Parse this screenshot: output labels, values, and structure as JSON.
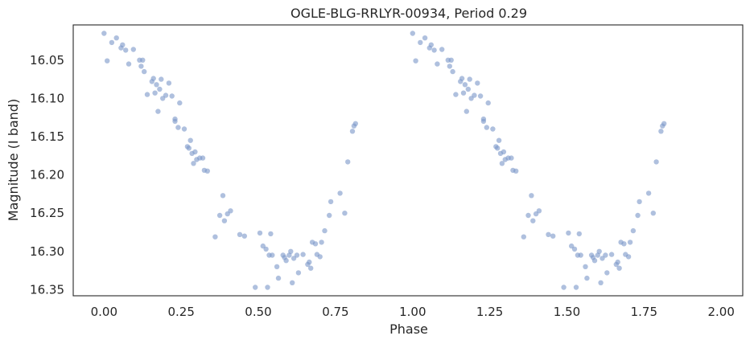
{
  "chart_data": {
    "type": "scatter",
    "title": "OGLE-BLG-RRLYR-00934, Period 0.29",
    "xlabel": "Phase",
    "ylabel": "Magnitude (I band)",
    "xlim": [
      -0.1,
      2.07
    ],
    "ylim": [
      16.358,
      16.004
    ],
    "y_inverted": true,
    "grid": false,
    "point_color": "#7a96c8",
    "x_ticks": [
      "0.00",
      "0.25",
      "0.50",
      "0.75",
      "1.00",
      "1.25",
      "1.50",
      "1.75",
      "2.00"
    ],
    "x_tick_values": [
      0,
      0.25,
      0.5,
      0.75,
      1.0,
      1.25,
      1.5,
      1.75,
      2.0
    ],
    "y_ticks": [
      "16.05",
      "16.10",
      "16.15",
      "16.20",
      "16.25",
      "16.30",
      "16.35"
    ],
    "y_tick_values": [
      16.05,
      16.1,
      16.15,
      16.2,
      16.25,
      16.3,
      16.35
    ],
    "points": [
      [
        0.0,
        16.015
      ],
      [
        0.01,
        16.051
      ],
      [
        0.025,
        16.027
      ],
      [
        0.04,
        16.021
      ],
      [
        0.055,
        16.034
      ],
      [
        0.06,
        16.03
      ],
      [
        0.07,
        16.037
      ],
      [
        0.08,
        16.055
      ],
      [
        0.095,
        16.036
      ],
      [
        0.115,
        16.05
      ],
      [
        0.12,
        16.058
      ],
      [
        0.125,
        16.05
      ],
      [
        0.13,
        16.065
      ],
      [
        0.14,
        16.095
      ],
      [
        0.155,
        16.078
      ],
      [
        0.16,
        16.074
      ],
      [
        0.165,
        16.093
      ],
      [
        0.17,
        16.082
      ],
      [
        0.175,
        16.117
      ],
      [
        0.18,
        16.088
      ],
      [
        0.185,
        16.075
      ],
      [
        0.19,
        16.1
      ],
      [
        0.2,
        16.096
      ],
      [
        0.21,
        16.08
      ],
      [
        0.22,
        16.097
      ],
      [
        0.23,
        16.127
      ],
      [
        0.23,
        16.13
      ],
      [
        0.24,
        16.138
      ],
      [
        0.245,
        16.106
      ],
      [
        0.26,
        16.14
      ],
      [
        0.27,
        16.163
      ],
      [
        0.275,
        16.165
      ],
      [
        0.28,
        16.155
      ],
      [
        0.285,
        16.172
      ],
      [
        0.29,
        16.185
      ],
      [
        0.295,
        16.17
      ],
      [
        0.3,
        16.18
      ],
      [
        0.31,
        16.178
      ],
      [
        0.32,
        16.178
      ],
      [
        0.325,
        16.194
      ],
      [
        0.335,
        16.195
      ],
      [
        0.36,
        16.281
      ],
      [
        0.375,
        16.253
      ],
      [
        0.385,
        16.227
      ],
      [
        0.39,
        16.26
      ],
      [
        0.4,
        16.251
      ],
      [
        0.41,
        16.247
      ],
      [
        0.44,
        16.278
      ],
      [
        0.455,
        16.28
      ],
      [
        0.49,
        16.347
      ],
      [
        0.505,
        16.276
      ],
      [
        0.515,
        16.293
      ],
      [
        0.525,
        16.297
      ],
      [
        0.53,
        16.347
      ],
      [
        0.535,
        16.305
      ],
      [
        0.54,
        16.277
      ],
      [
        0.545,
        16.305
      ],
      [
        0.56,
        16.32
      ],
      [
        0.565,
        16.335
      ],
      [
        0.58,
        16.305
      ],
      [
        0.585,
        16.308
      ],
      [
        0.59,
        16.312
      ],
      [
        0.6,
        16.305
      ],
      [
        0.605,
        16.3
      ],
      [
        0.61,
        16.341
      ],
      [
        0.615,
        16.309
      ],
      [
        0.625,
        16.305
      ],
      [
        0.63,
        16.328
      ],
      [
        0.645,
        16.304
      ],
      [
        0.66,
        16.317
      ],
      [
        0.665,
        16.314
      ],
      [
        0.67,
        16.322
      ],
      [
        0.675,
        16.288
      ],
      [
        0.685,
        16.29
      ],
      [
        0.69,
        16.304
      ],
      [
        0.7,
        16.307
      ],
      [
        0.705,
        16.288
      ],
      [
        0.715,
        16.273
      ],
      [
        0.73,
        16.253
      ],
      [
        0.735,
        16.235
      ],
      [
        0.765,
        16.224
      ],
      [
        0.78,
        16.25
      ],
      [
        0.79,
        16.183
      ],
      [
        0.805,
        16.143
      ],
      [
        0.81,
        16.136
      ],
      [
        0.815,
        16.133
      ]
    ]
  }
}
